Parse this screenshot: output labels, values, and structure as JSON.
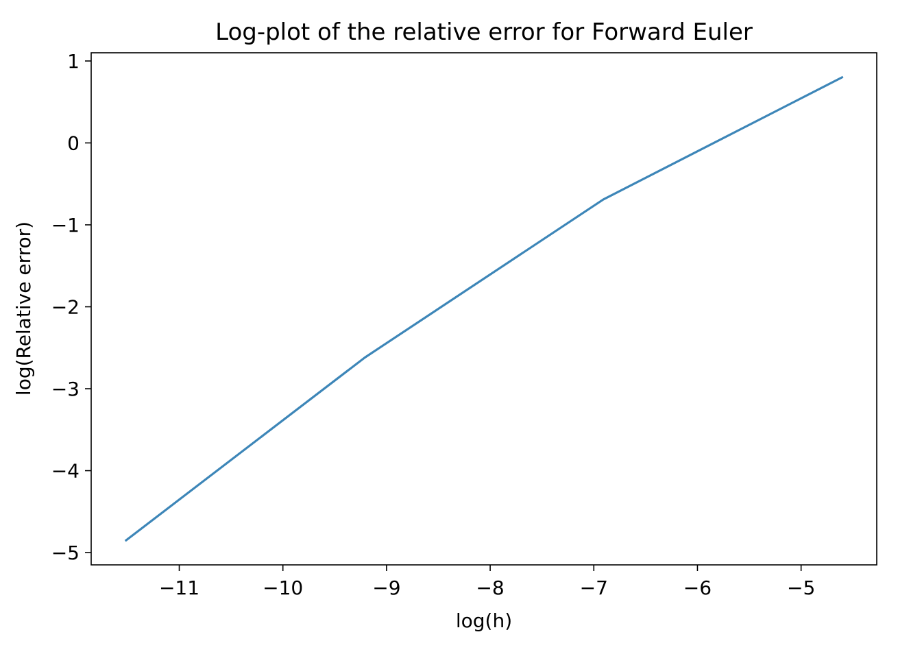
{
  "chart_data": {
    "type": "line",
    "title": "Log-plot of the relative error for Forward Euler",
    "xlabel": "log(h)",
    "ylabel": "log(Relative error)",
    "xlim": [
      -11.85,
      -4.27
    ],
    "ylim": [
      -5.15,
      1.1
    ],
    "xticks": [
      -11,
      -10,
      -9,
      -8,
      -7,
      -6,
      -5
    ],
    "yticks": [
      -5,
      -4,
      -3,
      -2,
      -1,
      0,
      1
    ],
    "grid": false,
    "legend": "none",
    "series": [
      {
        "color": "#3d86b8",
        "x": [
          -11.513,
          -9.21,
          -6.908,
          -4.605
        ],
        "y": [
          -4.85,
          -2.62,
          -0.69,
          0.8
        ]
      }
    ]
  }
}
